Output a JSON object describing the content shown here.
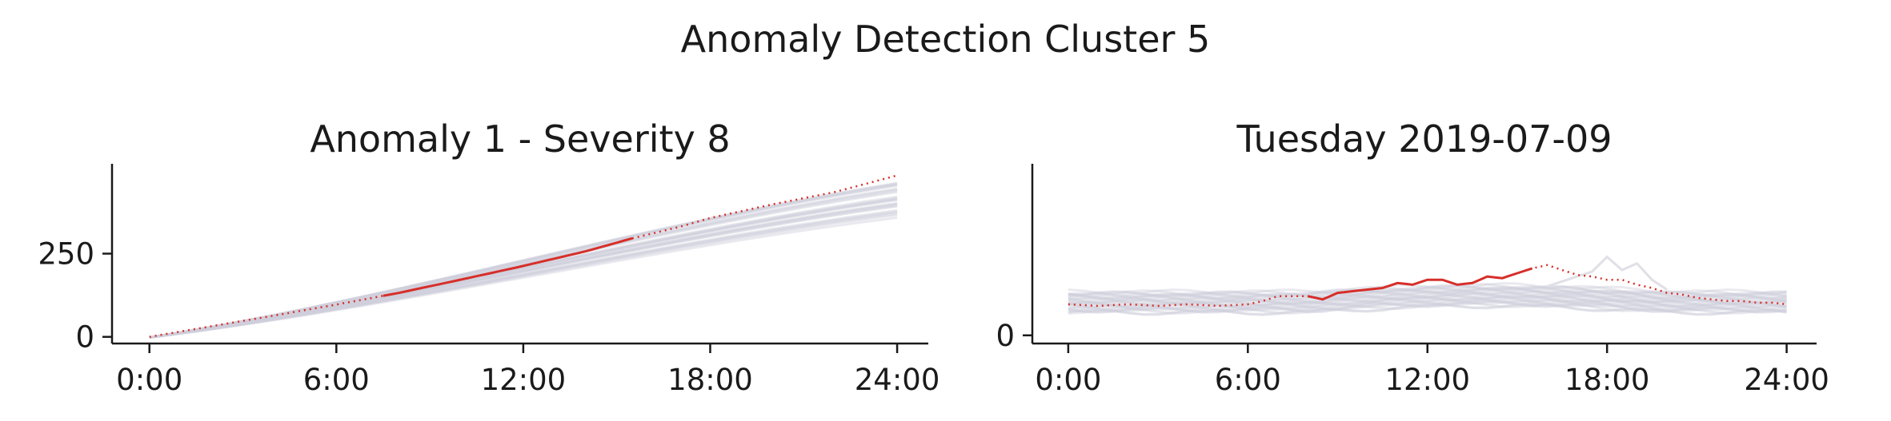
{
  "suptitle": "Anomaly Detection Cluster 5",
  "colors": {
    "highlight": "#d62f2a",
    "background_lines": "#cfcfdc",
    "axis": "#1a1a1a",
    "outlier_line": "#e0e0e6"
  },
  "chart_data": [
    {
      "type": "line",
      "title": "Anomaly 1 - Severity 8",
      "xlabel": "",
      "ylabel": "",
      "x_unit": "hours",
      "xlim": [
        -1.2,
        25
      ],
      "ylim": [
        -20,
        520
      ],
      "xticks": [
        0,
        6,
        12,
        18,
        24
      ],
      "xtick_labels": [
        "0:00",
        "6:00",
        "12:00",
        "18:00",
        "24:00"
      ],
      "yticks": [
        0,
        250
      ],
      "ytick_labels": [
        "0",
        "250"
      ],
      "grid": false,
      "legend": "none",
      "background_series": {
        "count": 25,
        "end_values": [
          360,
          375,
          390,
          400,
          415,
          430,
          445,
          455
        ]
      },
      "highlight": {
        "x": [
          0,
          2,
          4,
          6,
          8,
          10,
          12,
          14,
          15.5,
          17,
          18,
          20,
          22,
          24
        ],
        "y": [
          0,
          32,
          64,
          97,
          132,
          172,
          213,
          257,
          296,
          330,
          357,
          398,
          435,
          485
        ],
        "solid_range": [
          7.5,
          15.5
        ]
      }
    },
    {
      "type": "line",
      "title": "Tuesday 2019-07-09",
      "xlabel": "",
      "ylabel": "",
      "x_unit": "hours",
      "xlim": [
        -1.2,
        25
      ],
      "ylim": [
        -5,
        105
      ],
      "xticks": [
        0,
        6,
        12,
        18,
        24
      ],
      "xtick_labels": [
        "0:00",
        "6:00",
        "12:00",
        "18:00",
        "24:00"
      ],
      "yticks": [
        0
      ],
      "ytick_labels": [
        "0"
      ],
      "grid": false,
      "legend": "none",
      "background_series": {
        "count": 25,
        "band_low": 14,
        "band_high": 27
      },
      "outlier_series": {
        "x": [
          16,
          17,
          17.5,
          18,
          18.5,
          19,
          19.5,
          20
        ],
        "y": [
          30,
          36,
          39,
          48,
          40,
          44,
          34,
          28
        ]
      },
      "highlight": {
        "x": [
          0,
          1,
          2,
          3,
          4,
          5,
          6,
          6.5,
          7,
          7.5,
          8,
          8.5,
          9,
          9.5,
          10,
          10.5,
          11,
          11.5,
          12,
          12.5,
          13,
          13.5,
          14,
          14.5,
          15,
          15.5,
          16,
          16.5,
          17,
          17.5,
          18,
          18.5,
          19,
          19.5,
          20,
          20.5,
          21,
          21.5,
          22,
          22.5,
          23,
          23.5,
          24
        ],
        "y": [
          19,
          18,
          19,
          18,
          19,
          18,
          19,
          21,
          24,
          24,
          24,
          22,
          26,
          27,
          28,
          29,
          32,
          31,
          34,
          34,
          31,
          32,
          36,
          35,
          38,
          41,
          43,
          40,
          37,
          36,
          34,
          34,
          31,
          29,
          26,
          25,
          23,
          22,
          21,
          21,
          20,
          20,
          19
        ],
        "solid_range": [
          8,
          15.5
        ]
      }
    }
  ]
}
